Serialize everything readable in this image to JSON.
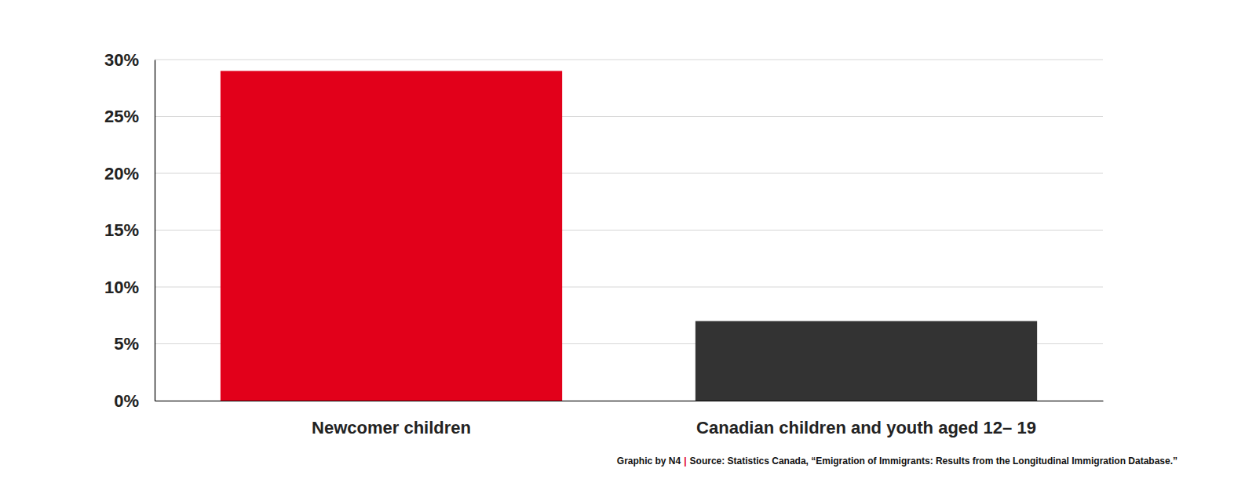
{
  "chart_data": {
    "type": "bar",
    "categories": [
      "Newcomer children",
      "Canadian children and youth aged 12– 19"
    ],
    "values": [
      29,
      7
    ],
    "colors": [
      "#e2001a",
      "#333333"
    ],
    "ylim": [
      0,
      30
    ],
    "yticks": [
      {
        "value": 0,
        "label": "0%"
      },
      {
        "value": 5,
        "label": "5%"
      },
      {
        "value": 10,
        "label": "10%"
      },
      {
        "value": 15,
        "label": "15%"
      },
      {
        "value": 20,
        "label": "20%"
      },
      {
        "value": 25,
        "label": "25%"
      },
      {
        "value": 30,
        "label": "30%"
      }
    ],
    "grid": true,
    "annotations": [
      "Graphic by N4",
      "|",
      "Source: Statistics Canada, “Emigration of Immigrants: Results from the Longitudinal Immigration Database.”"
    ]
  }
}
